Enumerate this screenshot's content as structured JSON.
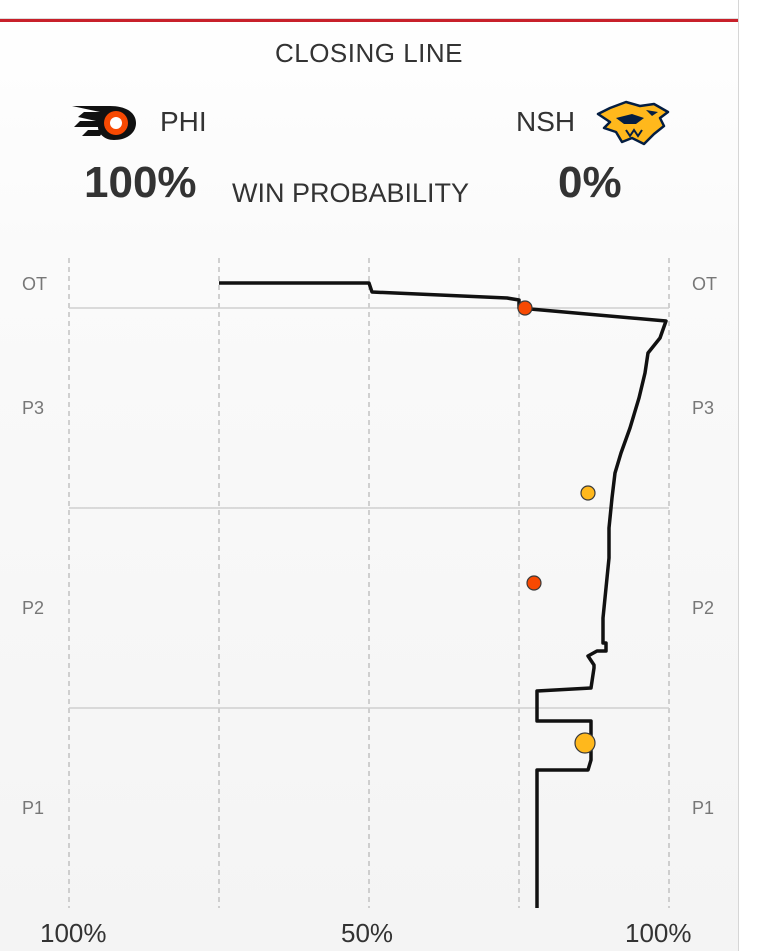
{
  "header": {
    "title": "CLOSING LINE",
    "accent_color": "#c8202a"
  },
  "teams": {
    "home": {
      "abbr": "PHI",
      "win_pct": "100%",
      "logo_icon": "flyers-logo-icon",
      "color": "#f74902"
    },
    "away": {
      "abbr": "NSH",
      "win_pct": "0%",
      "logo_icon": "predators-logo-icon",
      "color": "#ffb81c"
    }
  },
  "win_probability_label": "WIN PROBABILITY",
  "chart_data": {
    "type": "line",
    "orientation": "vertical-time",
    "title": "CLOSING LINE",
    "xlabel": "",
    "ylabel": "",
    "x_tick_labels": [
      "100%",
      "50%",
      "100%"
    ],
    "x_domain_note": "win probability from PHI 100% (left) through 50% (center) to NSH 100% (right)",
    "xlim": [
      -100,
      100
    ],
    "period_labels": [
      "OT",
      "P3",
      "P2",
      "P1"
    ],
    "grid": true,
    "line_color": "#111111",
    "series": [
      {
        "points": [
          {
            "nsh": 56,
            "t": 0.0
          },
          {
            "nsh": 56,
            "t": 13.8
          },
          {
            "nsh": 73,
            "t": 13.8
          },
          {
            "nsh": 74,
            "t": 14.8
          },
          {
            "nsh": 74,
            "t": 18.7
          },
          {
            "nsh": 56,
            "t": 18.7
          },
          {
            "nsh": 56,
            "t": 21.7
          },
          {
            "nsh": 74,
            "t": 22.0
          },
          {
            "nsh": 75,
            "t": 24.0
          },
          {
            "nsh": 75,
            "t": 24.3
          },
          {
            "nsh": 73,
            "t": 25.2
          },
          {
            "nsh": 76,
            "t": 25.7
          },
          {
            "nsh": 79,
            "t": 25.7
          },
          {
            "nsh": 79,
            "t": 26.5
          },
          {
            "nsh": 78,
            "t": 26.5
          },
          {
            "nsh": 78,
            "t": 29.0
          },
          {
            "nsh": 79,
            "t": 32.0
          },
          {
            "nsh": 80,
            "t": 35.0
          },
          {
            "nsh": 80,
            "t": 38.0
          },
          {
            "nsh": 81,
            "t": 41.0
          },
          {
            "nsh": 82,
            "t": 43.5
          },
          {
            "nsh": 84,
            "t": 45.5
          },
          {
            "nsh": 87,
            "t": 48.0
          },
          {
            "nsh": 90,
            "t": 51.0
          },
          {
            "nsh": 92,
            "t": 53.5
          },
          {
            "nsh": 93,
            "t": 55.5
          },
          {
            "nsh": 97,
            "t": 57.0
          },
          {
            "nsh": 99,
            "t": 58.7
          },
          {
            "nsh": 50,
            "t": 60.0
          },
          {
            "nsh": 50,
            "t": 60.8
          },
          {
            "nsh": 46,
            "t": 61.0
          },
          {
            "nsh": 1,
            "t": 61.6
          },
          {
            "nsh": 0,
            "t": 62.5
          },
          {
            "nsh": -50,
            "t": 62.5
          }
        ]
      }
    ],
    "goal_markers": [
      {
        "team": "NSH",
        "nsh": 72,
        "t": 16.5,
        "size": "large"
      },
      {
        "team": "PHI",
        "nsh": 55,
        "t": 32.5,
        "size": "small"
      },
      {
        "team": "NSH",
        "nsh": 73,
        "t": 41.5,
        "size": "small"
      },
      {
        "team": "PHI",
        "nsh": 52,
        "t": 60.0,
        "size": "small"
      }
    ]
  }
}
